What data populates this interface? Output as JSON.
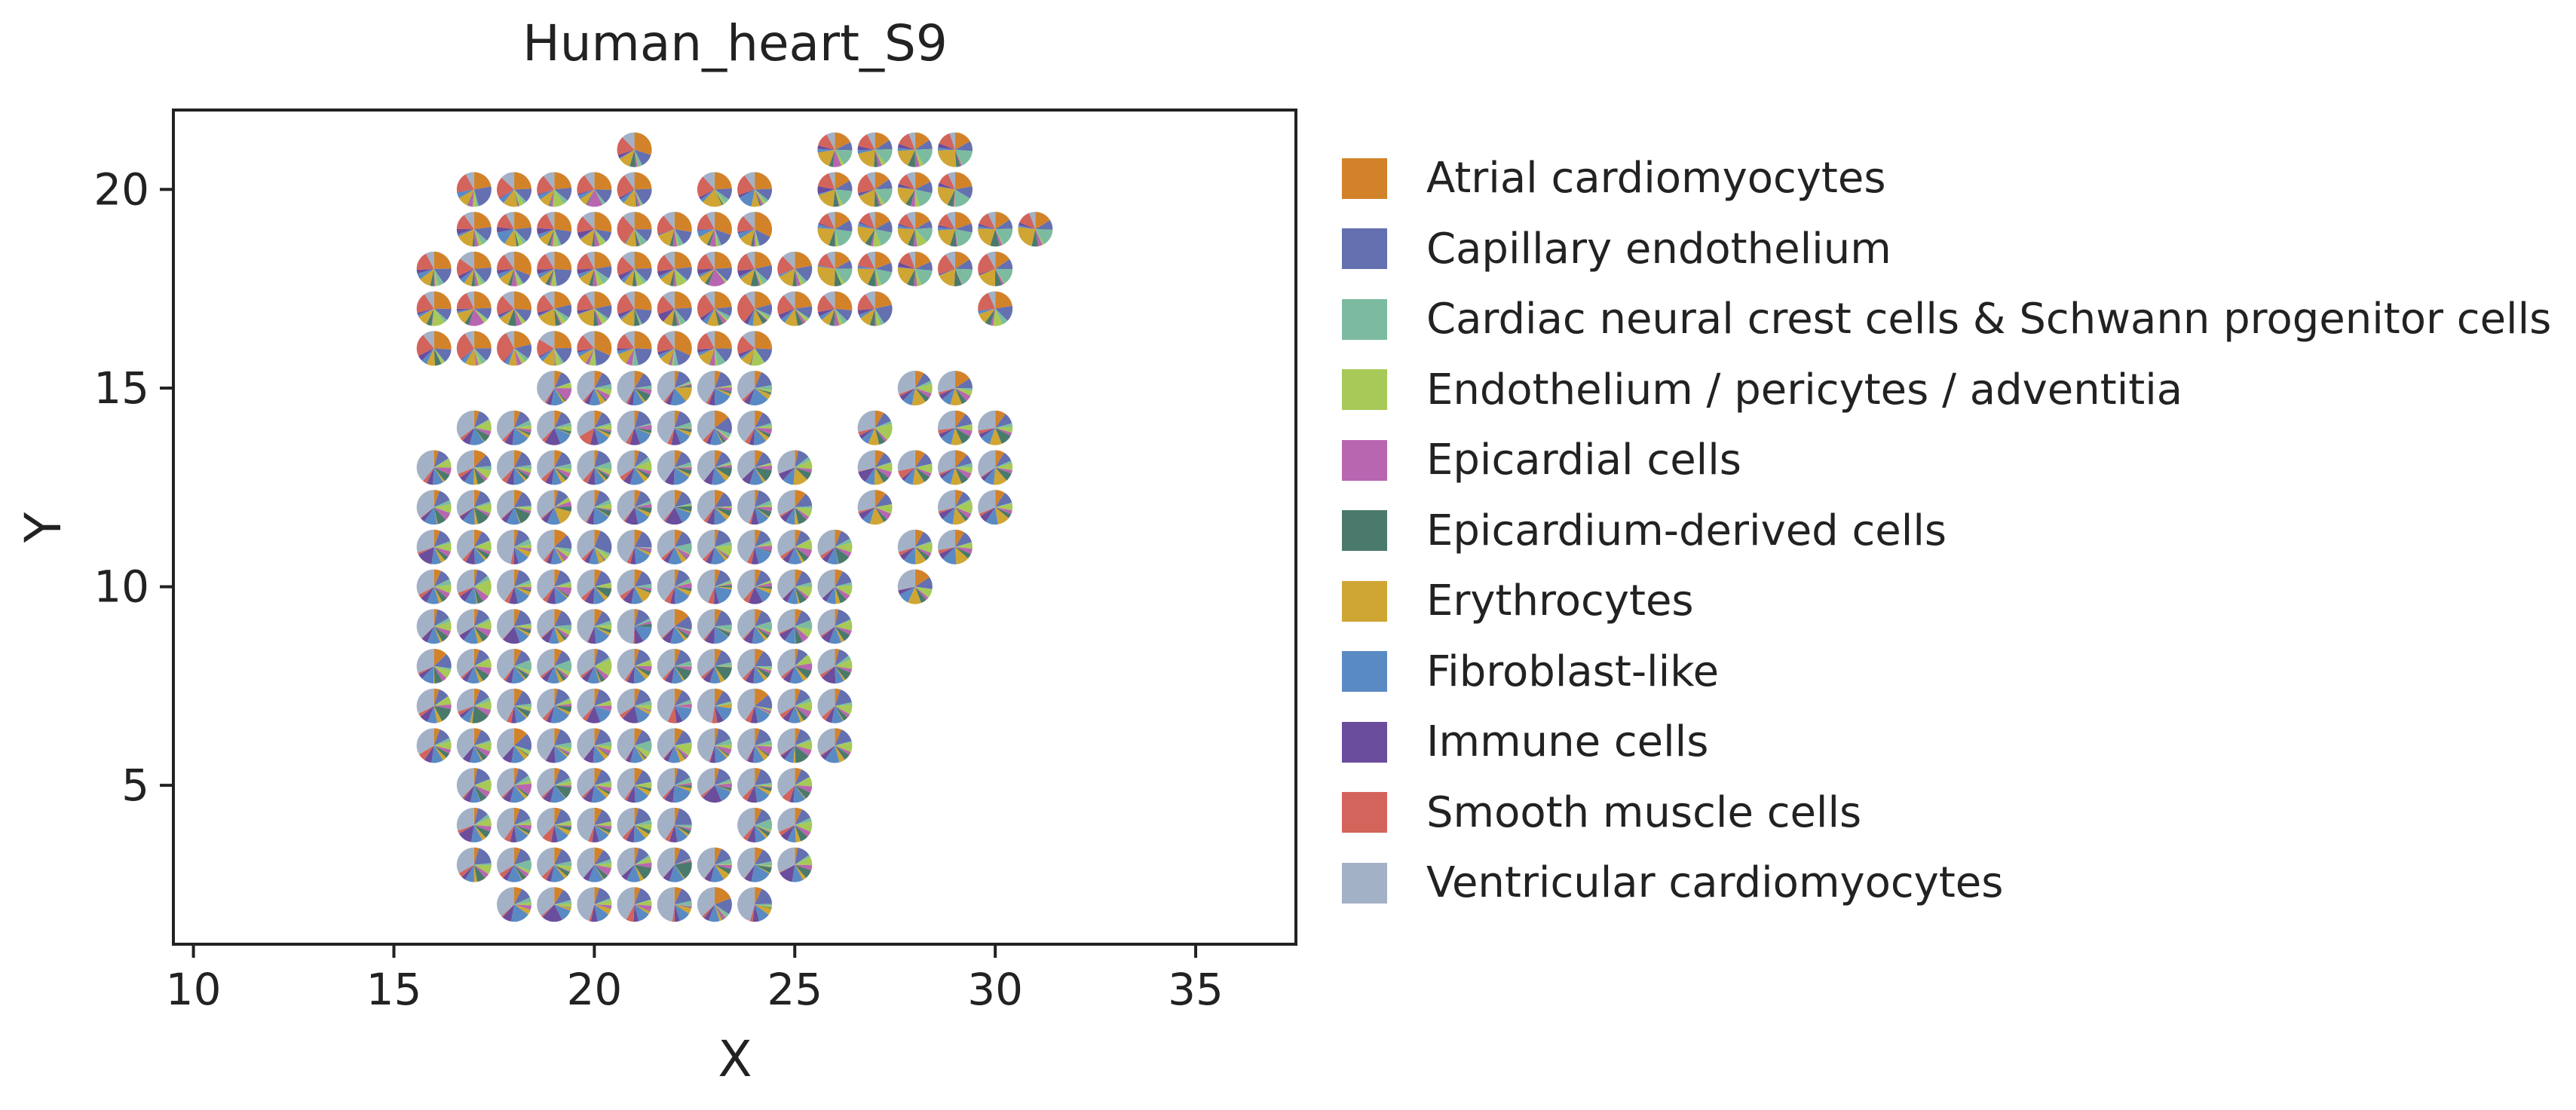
{
  "chart_data": {
    "type": "scatter",
    "marker": "pie",
    "title": "Human_heart_S9",
    "xlabel": "X",
    "ylabel": "Y",
    "xlim": [
      9.5,
      37.5
    ],
    "ylim": [
      1,
      22
    ],
    "xticks": [
      10,
      15,
      20,
      25,
      30,
      35
    ],
    "yticks": [
      5,
      10,
      15,
      20
    ],
    "grid": false,
    "legend_placement": "outside-right",
    "categories": [
      {
        "name": "Atrial cardiomyocytes",
        "color": "#d2832a"
      },
      {
        "name": "Capillary endothelium",
        "color": "#6470b0"
      },
      {
        "name": "Cardiac neural crest cells & Schwann progenitor cells",
        "color": "#7cbba0"
      },
      {
        "name": "Endothelium / pericytes / adventitia",
        "color": "#a7c957"
      },
      {
        "name": "Epicardial cells",
        "color": "#b866b0"
      },
      {
        "name": "Epicardium-derived cells",
        "color": "#4a7a6c"
      },
      {
        "name": "Erythrocytes",
        "color": "#cfa534"
      },
      {
        "name": "Fibroblast-like",
        "color": "#5a8ac4"
      },
      {
        "name": "Immune cells",
        "color": "#6a4d9c"
      },
      {
        "name": "Smooth muscle cells",
        "color": "#d2645c"
      },
      {
        "name": "Ventricular cardiomyocytes",
        "color": "#a3b1c6"
      }
    ],
    "spots": [
      {
        "y": 21,
        "xs": [
          21,
          26,
          27,
          28,
          29
        ]
      },
      {
        "y": 20,
        "xs": [
          17,
          18,
          19,
          20,
          21,
          23,
          24,
          26,
          27,
          28,
          29
        ]
      },
      {
        "y": 19,
        "xs": [
          17,
          18,
          19,
          20,
          21,
          22,
          23,
          24,
          26,
          27,
          28,
          29,
          30,
          31
        ]
      },
      {
        "y": 18,
        "xs": [
          16,
          17,
          18,
          19,
          20,
          21,
          22,
          23,
          24,
          25,
          26,
          27,
          28,
          29,
          30
        ]
      },
      {
        "y": 17,
        "xs": [
          16,
          17,
          18,
          19,
          20,
          21,
          22,
          23,
          24,
          25,
          26,
          27,
          30
        ]
      },
      {
        "y": 16,
        "xs": [
          16,
          17,
          18,
          19,
          20,
          21,
          22,
          23,
          24
        ]
      },
      {
        "y": 15,
        "xs": [
          19,
          20,
          21,
          22,
          23,
          24,
          28,
          29
        ]
      },
      {
        "y": 14,
        "xs": [
          17,
          18,
          19,
          20,
          21,
          22,
          23,
          24,
          27,
          29,
          30
        ]
      },
      {
        "y": 13,
        "xs": [
          16,
          17,
          18,
          19,
          20,
          21,
          22,
          23,
          24,
          25,
          27,
          28,
          29,
          30
        ]
      },
      {
        "y": 12,
        "xs": [
          16,
          17,
          18,
          19,
          20,
          21,
          22,
          23,
          24,
          25,
          27,
          29,
          30
        ]
      },
      {
        "y": 11,
        "xs": [
          16,
          17,
          18,
          19,
          20,
          21,
          22,
          23,
          24,
          25,
          26,
          28,
          29
        ]
      },
      {
        "y": 10,
        "xs": [
          16,
          17,
          18,
          19,
          20,
          21,
          22,
          23,
          24,
          25,
          26,
          28
        ]
      },
      {
        "y": 9,
        "xs": [
          16,
          17,
          18,
          19,
          20,
          21,
          22,
          23,
          24,
          25,
          26
        ]
      },
      {
        "y": 8,
        "xs": [
          16,
          17,
          18,
          19,
          20,
          21,
          22,
          23,
          24,
          25,
          26
        ]
      },
      {
        "y": 7,
        "xs": [
          16,
          17,
          18,
          19,
          20,
          21,
          22,
          23,
          24,
          25,
          26
        ]
      },
      {
        "y": 6,
        "xs": [
          16,
          17,
          18,
          19,
          20,
          21,
          22,
          23,
          24,
          25,
          26
        ]
      },
      {
        "y": 5,
        "xs": [
          17,
          18,
          19,
          20,
          21,
          22,
          23,
          24,
          25
        ]
      },
      {
        "y": 4,
        "xs": [
          17,
          18,
          19,
          20,
          21,
          22,
          24,
          25
        ]
      },
      {
        "y": 3,
        "xs": [
          17,
          18,
          19,
          20,
          21,
          22,
          23,
          24,
          25
        ]
      },
      {
        "y": 2,
        "xs": [
          18,
          19,
          20,
          21,
          22,
          23,
          24
        ]
      }
    ]
  }
}
